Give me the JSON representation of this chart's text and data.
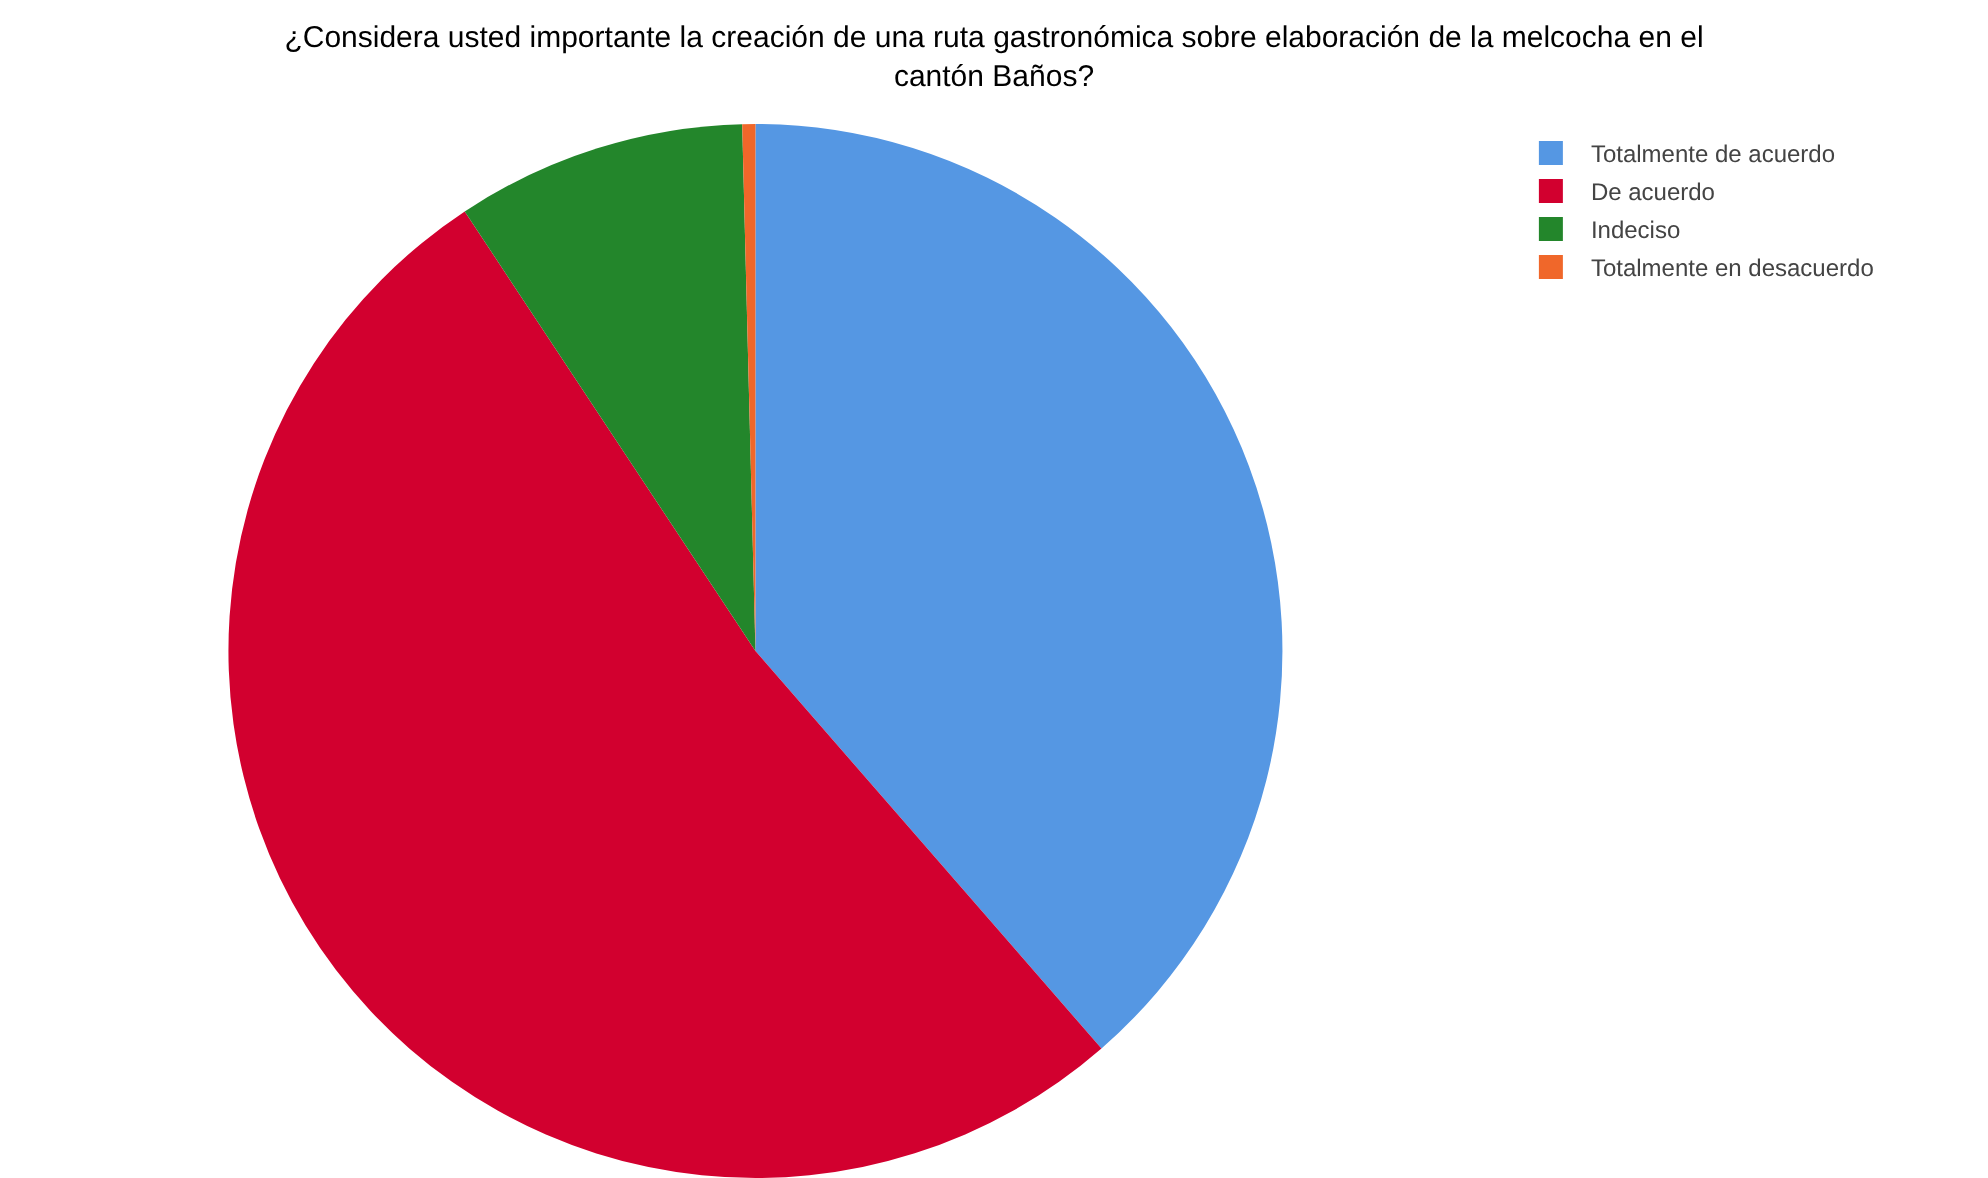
{
  "chart_data": {
    "type": "pie",
    "title": "¿Considera usted importante la creación de una ruta gastronómica sobre elaboración de la melcocha en el\ncantón Baños?",
    "categories": [
      "Totalmente de acuerdo",
      "De acuerdo",
      "Indeciso",
      "Totalmente en desacuerdo"
    ],
    "values": [
      38.6,
      52.1,
      8.9,
      0.4
    ],
    "colors": [
      "#5597e3",
      "#d2002f",
      "#23862b",
      "#f0672a"
    ],
    "legend": "top right"
  }
}
